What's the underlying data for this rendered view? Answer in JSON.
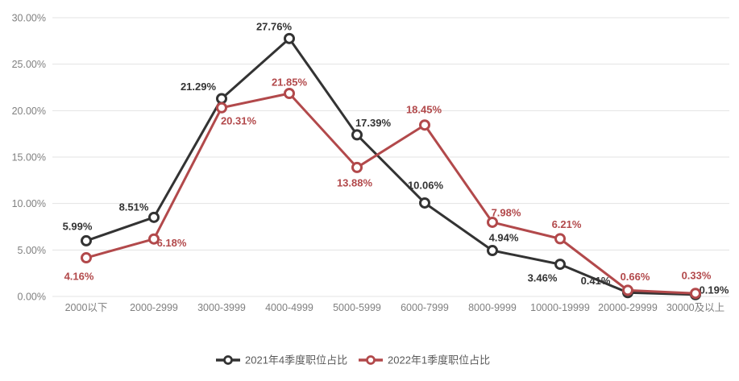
{
  "chart_data": {
    "type": "line",
    "categories": [
      "2000以下",
      "2000-2999",
      "3000-3999",
      "4000-4999",
      "5000-5999",
      "6000-7999",
      "8000-9999",
      "10000-19999",
      "20000-29999",
      "30000及以上"
    ],
    "series": [
      {
        "name": "2021年4季度职位占比",
        "color": "#333333",
        "values": [
          5.99,
          8.51,
          21.29,
          27.76,
          17.39,
          10.06,
          4.94,
          3.46,
          0.41,
          0.19
        ],
        "labels": [
          "5.99%",
          "8.51%",
          "21.29%",
          "27.76%",
          "17.39%",
          "10.06%",
          "4.94%",
          "3.46%",
          "0.41%",
          "0.19%"
        ],
        "label_offsets": [
          [
            -11,
            -18
          ],
          [
            -25,
            -13
          ],
          [
            -29,
            -15
          ],
          [
            -19,
            -15
          ],
          [
            20,
            -15
          ],
          [
            1,
            -22
          ],
          [
            14,
            -16
          ],
          [
            -22,
            17
          ],
          [
            -40,
            -15
          ],
          [
            23,
            -6
          ]
        ]
      },
      {
        "name": "2022年1季度职位占比",
        "color": "#b2494b",
        "values": [
          4.16,
          6.18,
          20.31,
          21.85,
          13.88,
          18.45,
          7.98,
          6.21,
          0.66,
          0.33
        ],
        "labels": [
          "4.16%",
          "6.18%",
          "20.31%",
          "21.85%",
          "13.88%",
          "18.45%",
          "7.98%",
          "6.21%",
          "0.66%",
          "0.33%"
        ],
        "label_offsets": [
          [
            -9,
            23
          ],
          [
            22,
            5
          ],
          [
            21,
            16
          ],
          [
            0,
            -14
          ],
          [
            -3,
            19
          ],
          [
            -1,
            -19
          ],
          [
            17,
            -12
          ],
          [
            8,
            -18
          ],
          [
            9,
            -17
          ],
          [
            1,
            -22
          ]
        ]
      }
    ],
    "y_ticks": [
      "0.00%",
      "5.00%",
      "10.00%",
      "15.00%",
      "20.00%",
      "25.00%",
      "30.00%"
    ],
    "ylim": [
      0,
      30
    ],
    "grid": true,
    "legend_position": "bottom",
    "title": "",
    "xlabel": "",
    "ylabel": "",
    "colors": {
      "background": "#ffffff",
      "gridline": "#e3e3e3",
      "axis_text": "#808080",
      "legend_text": "#595959",
      "marker_fill": "#ffffff"
    }
  }
}
